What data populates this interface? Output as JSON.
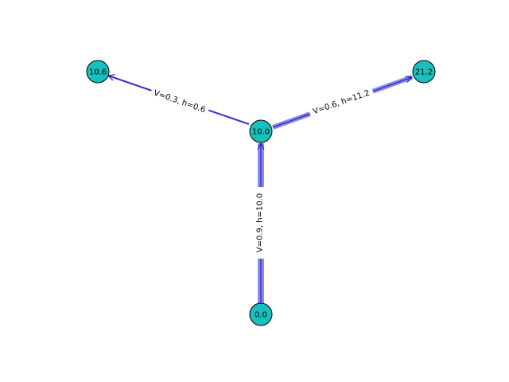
{
  "graph": {
    "colors": {
      "node_fill": "#17bfbf",
      "node_stroke": "#000000",
      "edge_thin": "#1f1fbf",
      "edge_thick": "#8a8af0",
      "background": "#ffffff"
    },
    "nodes": [
      {
        "id": "center",
        "label": "10.0"
      },
      {
        "id": "left",
        "label": "10.6"
      },
      {
        "id": "right",
        "label": "21.2"
      },
      {
        "id": "bottom",
        "label": "0.0"
      }
    ],
    "edges": [
      {
        "from": "center",
        "to": "left",
        "label": "V=0.3, h=0.6"
      },
      {
        "from": "center",
        "to": "right",
        "label": "V=0.6, h=11.2"
      },
      {
        "from": "bottom",
        "to": "center",
        "label": "V=0.9, h=10.0"
      }
    ]
  }
}
